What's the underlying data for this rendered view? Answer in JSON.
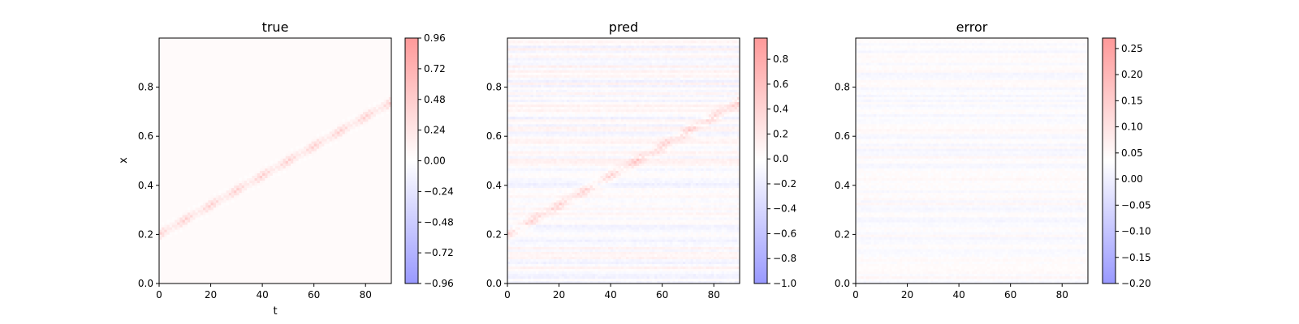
{
  "chart_data": [
    {
      "type": "heatmap",
      "title": "true",
      "xlabel": "t",
      "ylabel": "x",
      "xlim": [
        0,
        90
      ],
      "ylim": [
        0,
        1
      ],
      "xticks": [
        0,
        20,
        40,
        60,
        80
      ],
      "xtick_labels": [
        "0",
        "20",
        "40",
        "60",
        "80"
      ],
      "yticks": [
        0.0,
        0.2,
        0.4,
        0.6,
        0.8
      ],
      "ytick_labels": [
        "0.0",
        "0.2",
        "0.4",
        "0.6",
        "0.8"
      ],
      "colormap": "bwr",
      "colorbar": {
        "range": [
          -0.96,
          0.96
        ],
        "ticks": [
          -0.96,
          -0.72,
          -0.48,
          -0.24,
          0.0,
          0.24,
          0.48,
          0.72,
          0.96
        ],
        "tick_labels": [
          "−0.96",
          "−0.72",
          "−0.48",
          "−0.24",
          "0.00",
          "0.24",
          "0.48",
          "0.72",
          "0.96"
        ]
      },
      "pattern": {
        "start": {
          "t": 0,
          "x": 0.2
        },
        "end": {
          "t": 90,
          "x": 0.74
        },
        "peak_times": [
          0,
          10,
          20,
          30,
          40,
          50,
          60,
          70,
          80,
          90
        ],
        "peak_value": 0.55,
        "noise_level": 0
      }
    },
    {
      "type": "heatmap",
      "title": "pred",
      "xlabel": "",
      "ylabel": "",
      "xlim": [
        0,
        90
      ],
      "ylim": [
        0,
        1
      ],
      "xticks": [
        0,
        20,
        40,
        60,
        80
      ],
      "xtick_labels": [
        "0",
        "20",
        "40",
        "60",
        "80"
      ],
      "yticks": [
        0.0,
        0.2,
        0.4,
        0.6,
        0.8
      ],
      "ytick_labels": [
        "0.0",
        "0.2",
        "0.4",
        "0.6",
        "0.8"
      ],
      "colormap": "bwr",
      "colorbar": {
        "range": [
          -1.0,
          0.97
        ],
        "ticks": [
          -1.0,
          -0.8,
          -0.6,
          -0.4,
          -0.2,
          0.0,
          0.2,
          0.4,
          0.6,
          0.8
        ],
        "tick_labels": [
          "−1.0",
          "−0.8",
          "−0.6",
          "−0.4",
          "−0.2",
          "0.0",
          "0.2",
          "0.4",
          "0.6",
          "0.8"
        ]
      },
      "pattern": {
        "start": {
          "t": 0,
          "x": 0.2
        },
        "end": {
          "t": 90,
          "x": 0.74
        },
        "peak_times": [
          0,
          10,
          20,
          30,
          40,
          50,
          60,
          70,
          80,
          90
        ],
        "peak_value": 0.52,
        "noise_level": 0.06
      }
    },
    {
      "type": "heatmap",
      "title": "error",
      "xlabel": "",
      "ylabel": "",
      "xlim": [
        0,
        90
      ],
      "ylim": [
        0,
        1
      ],
      "xticks": [
        0,
        20,
        40,
        60,
        80
      ],
      "xtick_labels": [
        "0",
        "20",
        "40",
        "60",
        "80"
      ],
      "yticks": [
        0.0,
        0.2,
        0.4,
        0.6,
        0.8
      ],
      "ytick_labels": [
        "0.0",
        "0.2",
        "0.4",
        "0.6",
        "0.8"
      ],
      "colormap": "bwr",
      "colorbar": {
        "range": [
          -0.2,
          0.27
        ],
        "ticks": [
          -0.2,
          -0.15,
          -0.1,
          -0.05,
          0.0,
          0.05,
          0.1,
          0.15,
          0.2,
          0.25
        ],
        "tick_labels": [
          "−0.20",
          "−0.15",
          "−0.10",
          "−0.05",
          "0.00",
          "0.05",
          "0.10",
          "0.15",
          "0.20",
          "0.25"
        ]
      },
      "pattern": {
        "start": {
          "t": 0,
          "x": 0.2
        },
        "end": {
          "t": 90,
          "x": 0.74
        },
        "peak_times": [],
        "peak_value": 0,
        "noise_level": 0.04
      }
    }
  ]
}
